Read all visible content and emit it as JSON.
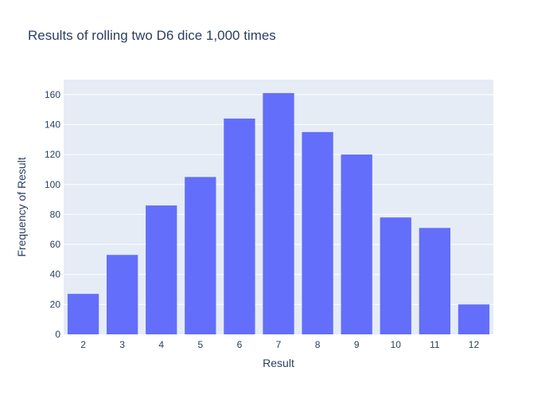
{
  "chart_data": {
    "type": "bar",
    "title": "Results of rolling two D6 dice 1,000 times",
    "xlabel": "Result",
    "ylabel": "Frequency of Result",
    "categories": [
      "2",
      "3",
      "4",
      "5",
      "6",
      "7",
      "8",
      "9",
      "10",
      "11",
      "12"
    ],
    "values": [
      27,
      53,
      86,
      105,
      144,
      161,
      135,
      120,
      78,
      71,
      20
    ],
    "ylim": [
      0,
      170
    ],
    "yticks": [
      0,
      20,
      40,
      60,
      80,
      100,
      120,
      140,
      160
    ],
    "grid": true,
    "legend": "none",
    "colors": {
      "bar": "#636efa",
      "plot_background": "#e5ecf6",
      "grid": "#ffffff",
      "text": "#2a3f5f"
    }
  }
}
